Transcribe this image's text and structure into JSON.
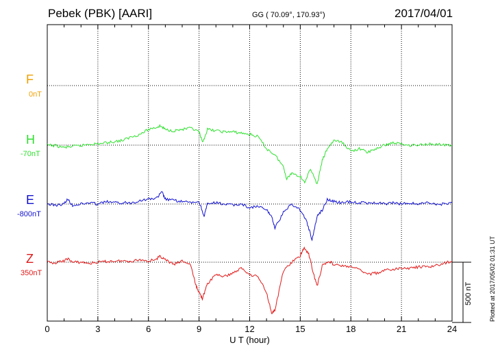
{
  "header": {
    "station": "Pebek (PBK)  [AARI]",
    "coords": "GG ( 70.09°, 170.93°)",
    "date": "2017/04/01"
  },
  "footnote": "Plotted at 2017/05/02 01:31  UT",
  "scale_label": "500 nT",
  "colors": {
    "F": "#f0a000",
    "H": "#2ee02e",
    "E": "#1010d0",
    "Z": "#e01818"
  },
  "chart_data": {
    "type": "line",
    "xlabel": "U T (hour)",
    "xlim": [
      0,
      24
    ],
    "x_ticks": [
      "0",
      "3",
      "6",
      "9",
      "12",
      "15",
      "18",
      "21",
      "24"
    ],
    "scale_bar_nT": 500,
    "series": [
      {
        "name": "F",
        "offset_label": "0nT",
        "baseline_nT": 0,
        "x": [],
        "values": []
      },
      {
        "name": "H",
        "offset_label": "-70nT",
        "baseline_nT": -70,
        "x": [
          0,
          0.5,
          1,
          1.5,
          2,
          2.5,
          3,
          3.5,
          4,
          4.5,
          5,
          5.5,
          6,
          6.5,
          6.7,
          7,
          7.5,
          8,
          8.5,
          9,
          9.2,
          9.5,
          10,
          10.5,
          11,
          11.5,
          12,
          12.5,
          13,
          13.5,
          14,
          14.2,
          14.5,
          15,
          15.3,
          15.6,
          16,
          16.3,
          16.6,
          17,
          17.5,
          18,
          18.5,
          19,
          19.5,
          20,
          20.5,
          21,
          21.5,
          22,
          22.5,
          23,
          23.5,
          24
        ],
        "values": [
          -70,
          -75,
          -90,
          -80,
          -75,
          -60,
          -60,
          -50,
          -40,
          -30,
          0,
          20,
          60,
          80,
          90,
          60,
          50,
          60,
          70,
          40,
          -50,
          60,
          50,
          40,
          40,
          30,
          20,
          0,
          -100,
          -150,
          -250,
          -350,
          -300,
          -330,
          -380,
          -260,
          -400,
          -200,
          -100,
          -30,
          -50,
          -120,
          -100,
          -130,
          -100,
          -70,
          -50,
          -60,
          -70,
          -70,
          -60,
          -60,
          -70,
          -70
        ]
      },
      {
        "name": "E",
        "offset_label": "-800nT",
        "baseline_nT": -800,
        "x": [
          0,
          0.5,
          1,
          1.2,
          1.5,
          2,
          2.5,
          3,
          3.5,
          4,
          4.5,
          5,
          5.5,
          6,
          6.5,
          6.8,
          7,
          7.5,
          8,
          8.5,
          9,
          9.3,
          9.5,
          10,
          10.5,
          11,
          11.5,
          12,
          12.5,
          13,
          13.3,
          13.5,
          14,
          14.5,
          15,
          15.4,
          15.7,
          16,
          16.3,
          16.6,
          17,
          17.5,
          18,
          18.5,
          19,
          19.5,
          20,
          20.5,
          21,
          21.5,
          22,
          22.5,
          23,
          23.5,
          24
        ],
        "values": [
          -800,
          -810,
          -800,
          -760,
          -810,
          -800,
          -790,
          -800,
          -780,
          -790,
          -790,
          -790,
          -770,
          -760,
          -750,
          -700,
          -760,
          -770,
          -780,
          -790,
          -780,
          -900,
          -800,
          -790,
          -800,
          -810,
          -800,
          -830,
          -820,
          -850,
          -900,
          -1000,
          -870,
          -800,
          -850,
          -950,
          -1100,
          -900,
          -850,
          -760,
          -780,
          -790,
          -780,
          -790,
          -790,
          -790,
          -800,
          -790,
          -800,
          -790,
          -800,
          -790,
          -800,
          -800,
          -790
        ]
      },
      {
        "name": "Z",
        "offset_label": "350nT",
        "baseline_nT": 350,
        "x": [
          0,
          0.5,
          1,
          1.2,
          1.5,
          2,
          2.5,
          3,
          3.5,
          4,
          4.5,
          5,
          5.5,
          6,
          6.5,
          6.7,
          7,
          7.5,
          8,
          8.5,
          8.8,
          9,
          9.2,
          9.5,
          10,
          10.5,
          11,
          11.5,
          12,
          12.5,
          13,
          13.3,
          13.5,
          14,
          14.5,
          15,
          15.2,
          15.5,
          15.8,
          16,
          16.3,
          16.7,
          17,
          17.5,
          18,
          18.5,
          19,
          19.5,
          20,
          20.5,
          21,
          21.5,
          22,
          22.5,
          23,
          23.5,
          24
        ],
        "values": [
          350,
          345,
          360,
          380,
          350,
          350,
          340,
          350,
          355,
          360,
          360,
          360,
          370,
          360,
          380,
          400,
          370,
          330,
          360,
          330,
          160,
          100,
          50,
          170,
          250,
          230,
          260,
          300,
          250,
          230,
          100,
          -70,
          -50,
          280,
          350,
          400,
          470,
          420,
          250,
          150,
          320,
          360,
          330,
          320,
          310,
          290,
          250,
          260,
          280,
          290,
          300,
          300,
          310,
          310,
          320,
          340,
          360
        ]
      }
    ]
  }
}
